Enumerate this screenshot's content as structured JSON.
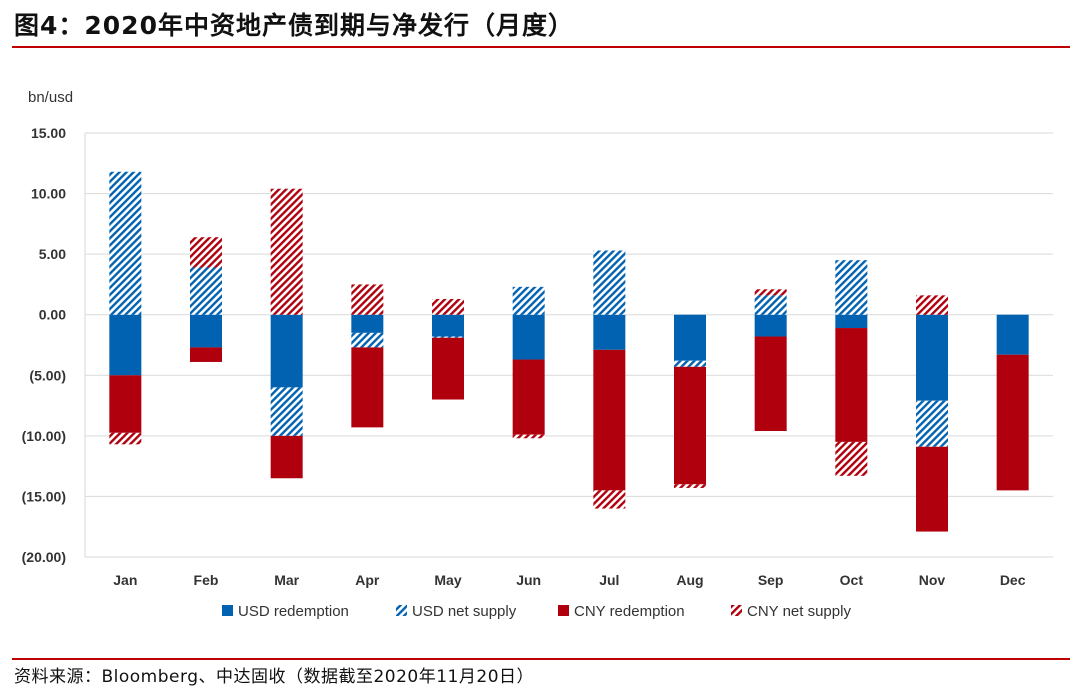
{
  "header": {
    "title": "图4：2020年中资地产债到期与净发行（月度）"
  },
  "footer": {
    "source": "资料来源：Bloomberg、中达固收（数据截至2020年11月20日）"
  },
  "colors": {
    "usd": "#0062b1",
    "cny": "#b0000d"
  },
  "chart_data": {
    "type": "bar",
    "stacked": true,
    "ylabel": "bn/usd",
    "ylim": [
      -20,
      15
    ],
    "yticks": [
      15,
      10,
      5,
      0,
      -5,
      -10,
      -15,
      -20
    ],
    "ytick_labels": [
      "15.00",
      "10.00",
      "5.00",
      "0.00",
      "(5.00)",
      "(10.00)",
      "(15.00)",
      "(20.00)"
    ],
    "grid": true,
    "legend_position": "bottom",
    "categories": [
      "Jan",
      "Feb",
      "Mar",
      "Apr",
      "May",
      "Jun",
      "Jul",
      "Aug",
      "Sep",
      "Oct",
      "Nov",
      "Dec"
    ],
    "series": [
      {
        "name": "USD redemption",
        "color": "#0062b1",
        "hatch": false,
        "values": [
          -5.0,
          -2.7,
          -6.0,
          -1.5,
          -1.8,
          -3.7,
          -2.9,
          -3.8,
          -1.8,
          -1.1,
          -7.1,
          -3.3
        ]
      },
      {
        "name": "USD net supply",
        "color": "#0062b1",
        "hatch": true,
        "values": [
          11.8,
          3.9,
          -4.0,
          -1.2,
          -0.1,
          2.3,
          5.3,
          -0.5,
          1.6,
          4.5,
          -3.8,
          0
        ]
      },
      {
        "name": "CNY redemption",
        "color": "#b0000d",
        "hatch": false,
        "values": [
          -4.75,
          -1.2,
          -3.5,
          -6.6,
          -5.1,
          -6.2,
          -11.6,
          -9.7,
          -7.8,
          -9.4,
          -7.0,
          -11.2
        ]
      },
      {
        "name": "CNY net supply",
        "color": "#b0000d",
        "hatch": true,
        "values": [
          -0.95,
          2.5,
          10.4,
          2.5,
          1.3,
          -0.3,
          -1.5,
          -0.3,
          0.5,
          -2.8,
          1.6,
          0
        ]
      }
    ]
  }
}
